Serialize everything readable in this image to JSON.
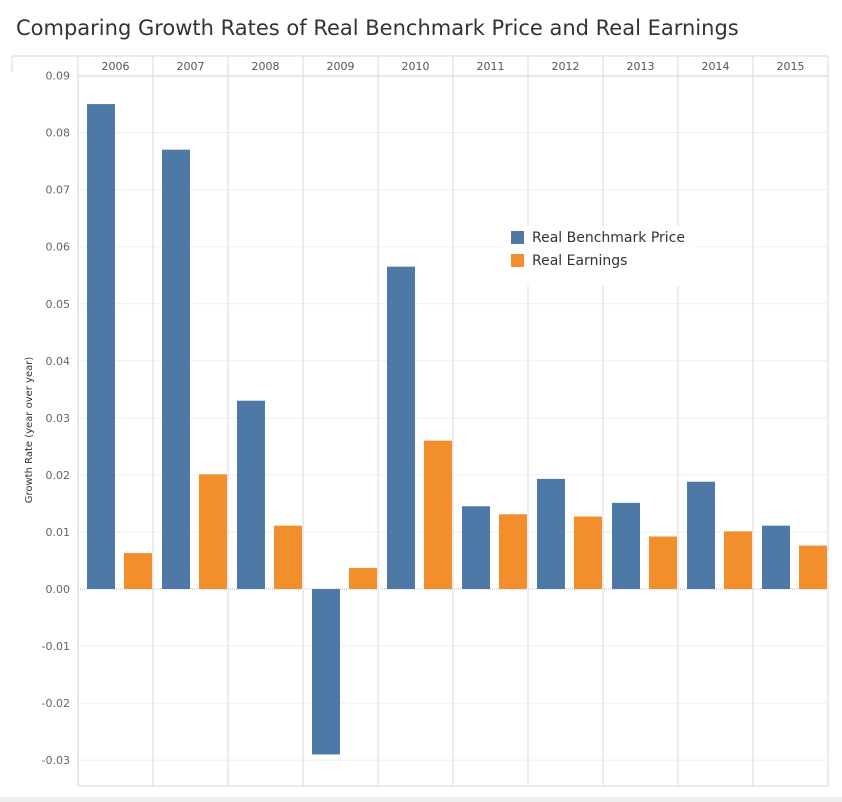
{
  "chart_data": {
    "type": "bar",
    "title": "Comparing Growth Rates of Real Benchmark Price and Real Earnings",
    "ylabel": "Growth Rate (year over year)",
    "xlabel": "",
    "categories": [
      "2006",
      "2007",
      "2008",
      "2009",
      "2010",
      "2011",
      "2012",
      "2013",
      "2014",
      "2015"
    ],
    "series": [
      {
        "name": "Real Benchmark Price",
        "color": "#4e79a7",
        "values": [
          0.085,
          0.077,
          0.033,
          -0.029,
          0.0565,
          0.0145,
          0.0193,
          0.0151,
          0.0188,
          0.0111
        ]
      },
      {
        "name": "Real Earnings",
        "color": "#f28e2b",
        "values": [
          0.0063,
          0.0201,
          0.0111,
          0.0037,
          0.026,
          0.0131,
          0.0127,
          0.0092,
          0.0101,
          0.0076
        ]
      }
    ],
    "yticks": [
      "0.09",
      "0.08",
      "0.07",
      "0.06",
      "0.05",
      "0.04",
      "0.03",
      "0.02",
      "0.01",
      "0.00",
      "-0.01",
      "-0.02",
      "-0.03"
    ],
    "ylim": [
      -0.0335,
      0.09
    ],
    "grid": true,
    "legend_position": "top-right"
  }
}
